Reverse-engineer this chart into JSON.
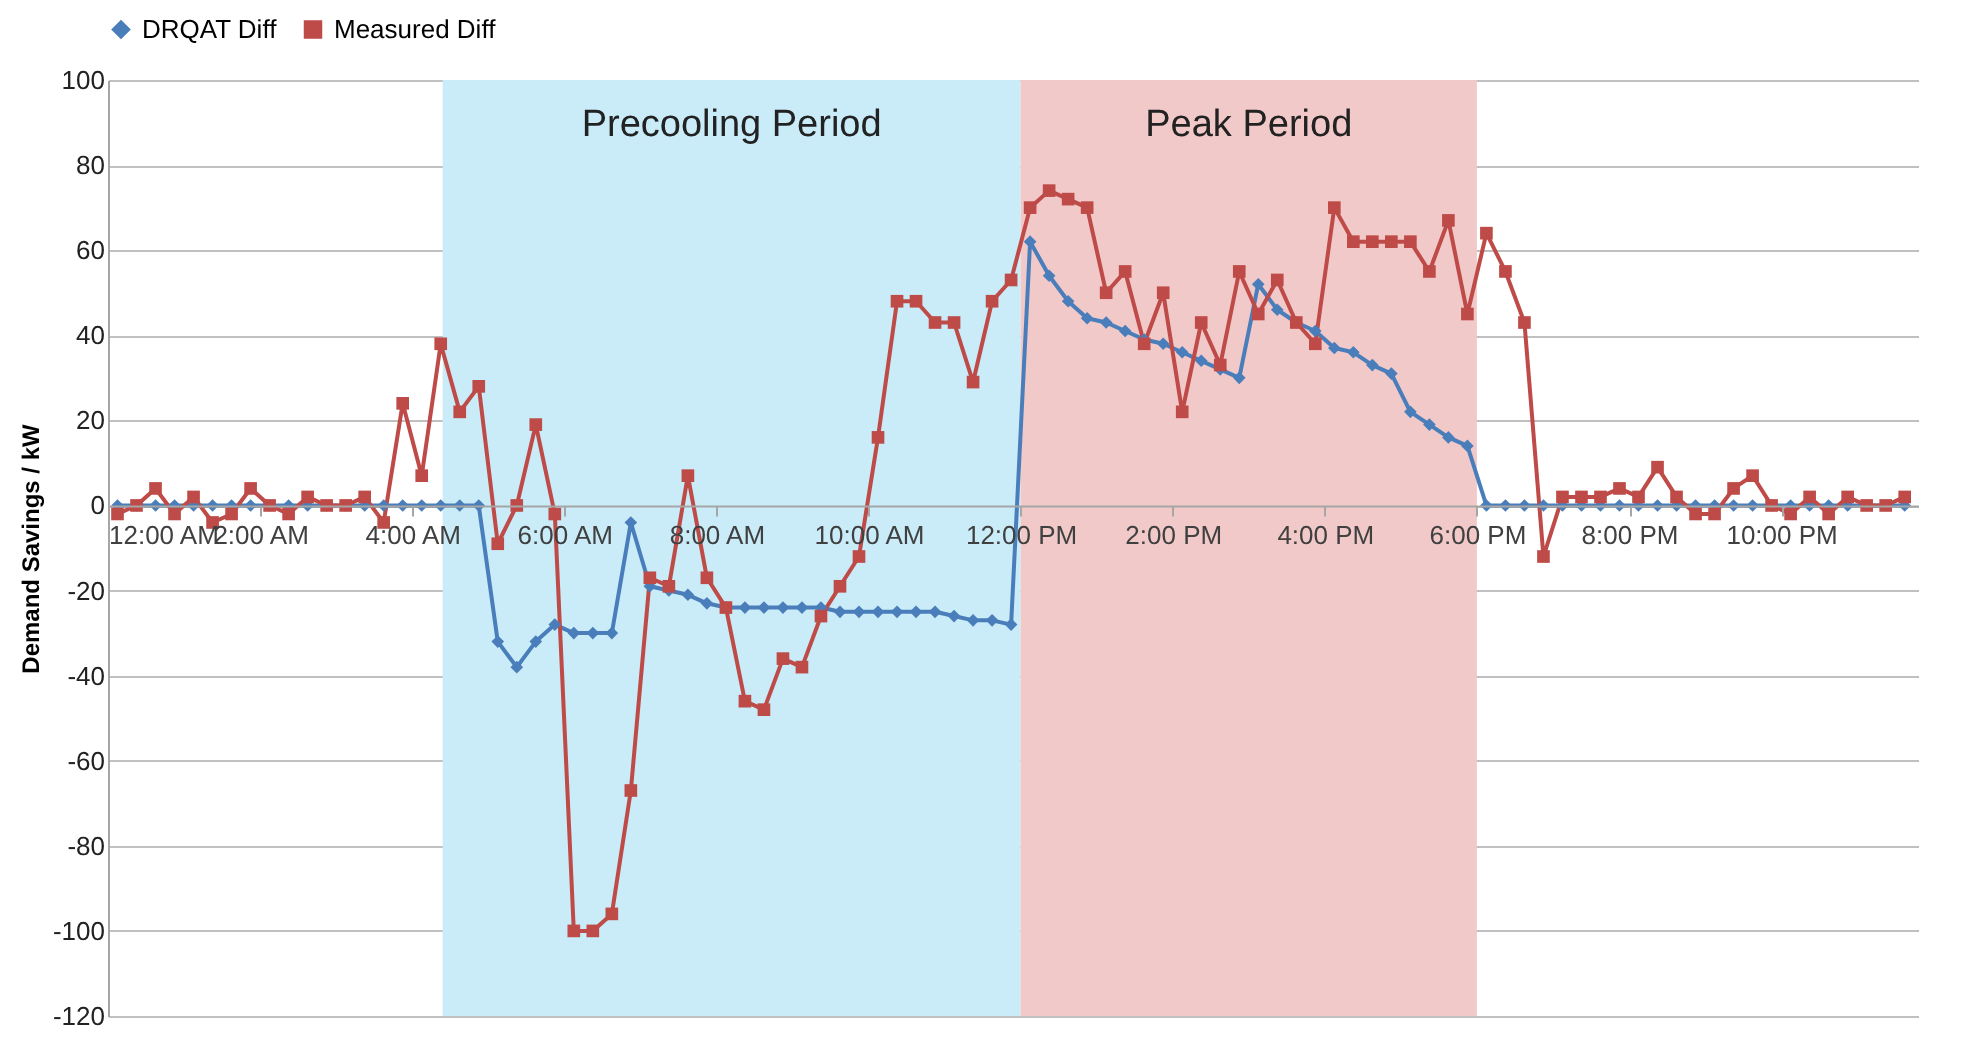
{
  "chart_data": {
    "type": "line",
    "ylabel": "Demand Savings / kW",
    "legend": "top",
    "grid": "y",
    "line_style": "solid",
    "xlim": [
      0,
      23.8
    ],
    "ylim": [
      -120,
      100
    ],
    "xticks": [
      {
        "value": 0,
        "label": "12:00 AM"
      },
      {
        "value": 2,
        "label": "2:00 AM"
      },
      {
        "value": 4,
        "label": "4:00 AM"
      },
      {
        "value": 6,
        "label": "6:00 AM"
      },
      {
        "value": 8,
        "label": "8:00 AM"
      },
      {
        "value": 10,
        "label": "10:00 AM"
      },
      {
        "value": 12,
        "label": "12:00 PM"
      },
      {
        "value": 14,
        "label": "2:00 PM"
      },
      {
        "value": 16,
        "label": "4:00 PM"
      },
      {
        "value": 18,
        "label": "6:00 PM"
      },
      {
        "value": 20,
        "label": "8:00 PM"
      },
      {
        "value": 22,
        "label": "10:00 PM"
      }
    ],
    "yticks": [
      -120,
      -100,
      -80,
      -60,
      -40,
      -20,
      0,
      20,
      40,
      60,
      80,
      100
    ],
    "bands": [
      {
        "axis": "x",
        "from": 4.4,
        "to": 12,
        "label": "Precooling Period",
        "color": "#c9ecf8"
      },
      {
        "axis": "x",
        "from": 12,
        "to": 18,
        "label": "Peak Period",
        "color": "#f2c9c9"
      }
    ],
    "x": [
      0.125,
      0.375,
      0.625,
      0.875,
      1.125,
      1.375,
      1.625,
      1.875,
      2.125,
      2.375,
      2.625,
      2.875,
      3.125,
      3.375,
      3.625,
      3.875,
      4.125,
      4.375,
      4.625,
      4.875,
      5.125,
      5.375,
      5.625,
      5.875,
      6.125,
      6.375,
      6.625,
      6.875,
      7.125,
      7.375,
      7.625,
      7.875,
      8.125,
      8.375,
      8.625,
      8.875,
      9.125,
      9.375,
      9.625,
      9.875,
      10.125,
      10.375,
      10.625,
      10.875,
      11.125,
      11.375,
      11.625,
      11.875,
      12.125,
      12.375,
      12.625,
      12.875,
      13.125,
      13.375,
      13.625,
      13.875,
      14.125,
      14.375,
      14.625,
      14.875,
      15.125,
      15.375,
      15.625,
      15.875,
      16.125,
      16.375,
      16.625,
      16.875,
      17.125,
      17.375,
      17.625,
      17.875,
      18.125,
      18.375,
      18.625,
      18.875,
      19.125,
      19.375,
      19.625,
      19.875,
      20.125,
      20.375,
      20.625,
      20.875,
      21.125,
      21.375,
      21.625,
      21.875,
      22.125,
      22.375,
      22.625,
      22.875,
      23.125,
      23.375,
      23.625
    ],
    "series": [
      {
        "name": "DRQAT Diff",
        "color": "#4a7ebb",
        "marker": "diamond",
        "values": [
          0,
          0,
          0,
          0,
          0,
          0,
          0,
          0,
          0,
          0,
          0,
          0,
          0,
          0,
          0,
          0,
          0,
          0,
          0,
          0,
          -32,
          -38,
          -32,
          -28,
          -30,
          -30,
          -30,
          -4,
          -19,
          -20,
          -21,
          -23,
          -24,
          -24,
          -24,
          -24,
          -24,
          -24,
          -25,
          -25,
          -25,
          -25,
          -25,
          -25,
          -26,
          -27,
          -27,
          -28,
          62,
          54,
          48,
          44,
          43,
          41,
          39,
          38,
          36,
          34,
          32,
          30,
          52,
          46,
          43,
          41,
          37,
          36,
          33,
          31,
          22,
          19,
          16,
          14,
          0,
          0,
          0,
          0,
          0,
          0,
          0,
          0,
          0,
          0,
          0,
          0,
          0,
          0,
          0,
          0,
          0,
          0,
          0,
          0,
          0,
          0,
          0
        ]
      },
      {
        "name": "Measured Diff",
        "color": "#be4b48",
        "marker": "square",
        "values": [
          -2,
          0,
          4,
          -2,
          2,
          -4,
          -2,
          4,
          0,
          -2,
          2,
          0,
          0,
          2,
          -4,
          24,
          7,
          38,
          22,
          28,
          -9,
          0,
          19,
          -2,
          -100,
          -100,
          -96,
          -67,
          -17,
          -19,
          7,
          -17,
          -24,
          -46,
          -48,
          -36,
          -38,
          -26,
          -19,
          -12,
          16,
          48,
          48,
          43,
          43,
          29,
          48,
          53,
          70,
          74,
          72,
          70,
          50,
          55,
          38,
          50,
          22,
          43,
          33,
          55,
          45,
          53,
          43,
          38,
          70,
          62,
          62,
          62,
          62,
          55,
          67,
          45,
          64,
          55,
          43,
          -12,
          2,
          2,
          2,
          4,
          2,
          9,
          2,
          -2,
          -2,
          4,
          7,
          0,
          -2,
          2,
          -2,
          2,
          0,
          0,
          2
        ]
      }
    ]
  }
}
